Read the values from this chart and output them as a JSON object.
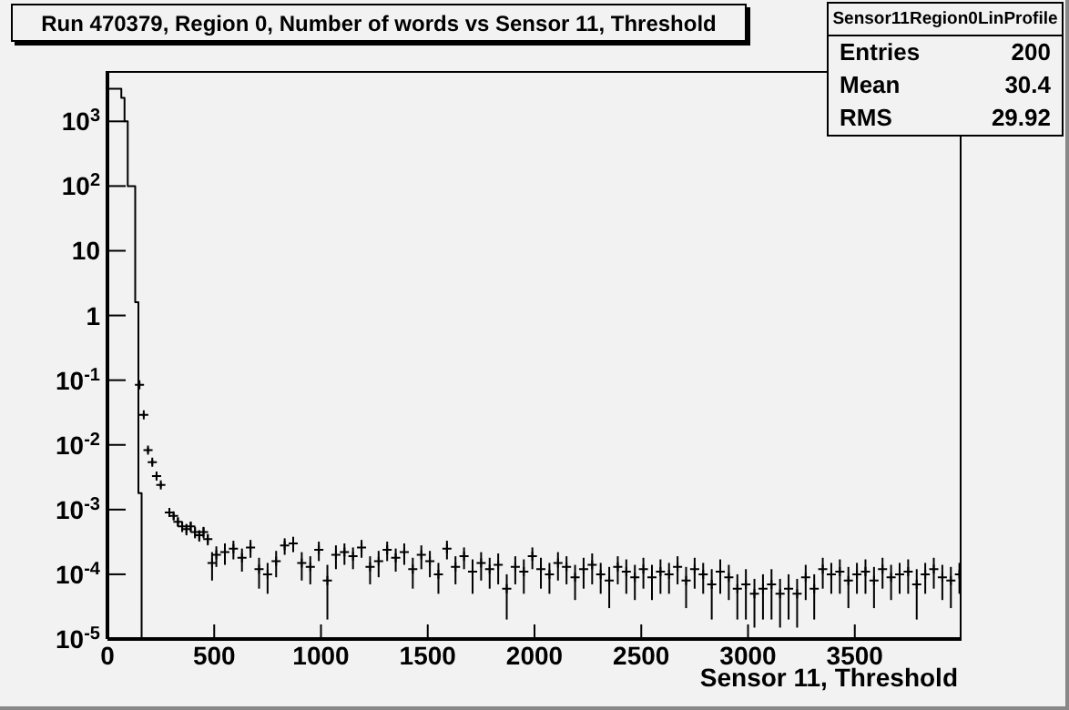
{
  "chart_data": {
    "type": "scatter",
    "title": "Run 470379, Region 0, Number of words vs Sensor 11, Threshold",
    "xlabel": "Sensor 11, Threshold",
    "annotations": [
      "Sensor11Region0LinProfile",
      "Entries 200",
      "Mean 30.4",
      "RMS 29.92"
    ],
    "xlim": [
      0,
      4000
    ],
    "xticks": [
      0,
      500,
      1000,
      1500,
      2000,
      2500,
      3000,
      3500
    ],
    "ylim": [
      1e-05,
      6000
    ],
    "log": true,
    "yticks": [
      {
        "value": 1e-05,
        "label": "10$^{-5}$"
      },
      {
        "value": 0.0001,
        "label": "10$^{-4}$"
      },
      {
        "value": 0.001,
        "label": "10$^{-3}$"
      },
      {
        "value": 0.01,
        "label": "10$^{-2}$"
      },
      {
        "value": 0.1,
        "label": "10$^{-1}$"
      },
      1,
      10,
      {
        "value": 100,
        "label": "10$^{2}$"
      },
      {
        "value": 1000,
        "label": "10$^{3}$"
      }
    ],
    "grid": false,
    "legend": false,
    "series": [
      {
        "type": "step",
        "color": "#000000",
        "x": [
          0,
          65,
          80,
          95,
          130,
          145,
          160
        ],
        "values": [
          3200,
          2300,
          1000,
          100,
          1.6,
          0.0018,
          1e-05
        ]
      },
      {
        "color": "#000000",
        "x": [
          150,
          170,
          190,
          210,
          230,
          250,
          290,
          310,
          330,
          350,
          370,
          390,
          410,
          430,
          450,
          470,
          490,
          510,
          550,
          590,
          630,
          670,
          710,
          750,
          790,
          830,
          870,
          910,
          950,
          990,
          1030,
          1070,
          1110,
          1150,
          1190,
          1230,
          1270,
          1310,
          1350,
          1390,
          1430,
          1470,
          1510,
          1550,
          1590,
          1630,
          1670,
          1710,
          1750,
          1790,
          1830,
          1870,
          1910,
          1950,
          1990,
          2030,
          2070,
          2110,
          2150,
          2190,
          2230,
          2270,
          2310,
          2350,
          2390,
          2430,
          2470,
          2510,
          2550,
          2590,
          2630,
          2670,
          2710,
          2750,
          2790,
          2830,
          2870,
          2910,
          2950,
          2990,
          3030,
          3070,
          3110,
          3150,
          3190,
          3230,
          3270,
          3310,
          3350,
          3390,
          3430,
          3470,
          3510,
          3550,
          3590,
          3630,
          3670,
          3710,
          3750,
          3790,
          3830,
          3870,
          3910,
          3950,
          3990
        ],
        "values": [
          0.085,
          0.029,
          0.0083,
          0.0054,
          0.0033,
          0.0024,
          0.0009,
          0.0008,
          0.00065,
          0.00055,
          0.0005,
          0.00055,
          0.00045,
          0.0004,
          0.00045,
          0.00035,
          0.00015,
          0.0002,
          0.00022,
          0.00025,
          0.00018,
          0.00026,
          0.00012,
          0.0001,
          0.00016,
          0.00028,
          0.0003,
          0.00015,
          0.00013,
          0.00024,
          8e-05,
          0.0002,
          0.00022,
          0.00019,
          0.00026,
          0.00013,
          0.00016,
          0.00024,
          0.00018,
          0.00022,
          0.00012,
          0.0002,
          0.00016,
          0.0001,
          0.00025,
          0.00013,
          0.00019,
          0.00011,
          0.00015,
          0.00012,
          0.00014,
          6e-05,
          0.00013,
          0.00011,
          0.00019,
          0.00012,
          0.0001,
          0.00015,
          0.00013,
          9e-05,
          0.00012,
          0.00014,
          0.0001,
          8e-05,
          0.00013,
          0.00011,
          9e-05,
          0.00012,
          9e-05,
          0.00011,
          0.0001,
          0.00013,
          8e-05,
          0.00012,
          0.0001,
          7e-05,
          0.00011,
          9e-05,
          6e-05,
          7e-05,
          5e-05,
          6e-05,
          7e-05,
          5e-05,
          6e-05,
          5e-05,
          9e-05,
          6e-05,
          0.00012,
          0.0001,
          0.00011,
          8e-05,
          0.0001,
          0.00011,
          8e-05,
          0.00012,
          9e-05,
          0.0001,
          0.00011,
          7e-05,
          0.0001,
          0.00012,
          9e-05,
          8e-05,
          0.0001
        ],
        "errors": [
          0.005,
          0.002,
          0.0008,
          0.0005,
          0.0003,
          0.0002,
          0.0001,
          0.0001,
          0.0001,
          0.0001,
          0.0001,
          0.0001,
          9e-05,
          8e-05,
          9e-05,
          7e-05,
          7e-05,
          7e-05,
          8e-05,
          8e-05,
          7e-05,
          8e-05,
          6e-05,
          5e-05,
          7e-05,
          8e-05,
          8e-05,
          7e-05,
          6e-05,
          8e-05,
          6e-05,
          8e-05,
          8e-05,
          7e-05,
          8e-05,
          6e-05,
          7e-05,
          8e-05,
          7e-05,
          8e-05,
          6e-05,
          8e-05,
          7e-05,
          5e-05,
          8e-05,
          6e-05,
          7e-05,
          6e-05,
          7e-05,
          6e-05,
          7e-05,
          4e-05,
          6e-05,
          6e-05,
          7e-05,
          6e-05,
          5e-05,
          7e-05,
          6e-05,
          5e-05,
          6e-05,
          7e-05,
          5e-05,
          5e-05,
          6e-05,
          6e-05,
          5e-05,
          6e-05,
          5e-05,
          6e-05,
          5e-05,
          6e-05,
          5e-05,
          6e-05,
          5e-05,
          5e-05,
          6e-05,
          5e-05,
          4e-05,
          5e-05,
          3.5e-05,
          4e-05,
          5e-05,
          3.5e-05,
          4e-05,
          3.5e-05,
          5e-05,
          4e-05,
          6e-05,
          5e-05,
          6e-05,
          5e-05,
          5e-05,
          6e-05,
          5e-05,
          6e-05,
          5e-05,
          5e-05,
          6e-05,
          5e-05,
          5e-05,
          6e-05,
          5e-05,
          5e-05,
          5e-05
        ]
      }
    ]
  }
}
